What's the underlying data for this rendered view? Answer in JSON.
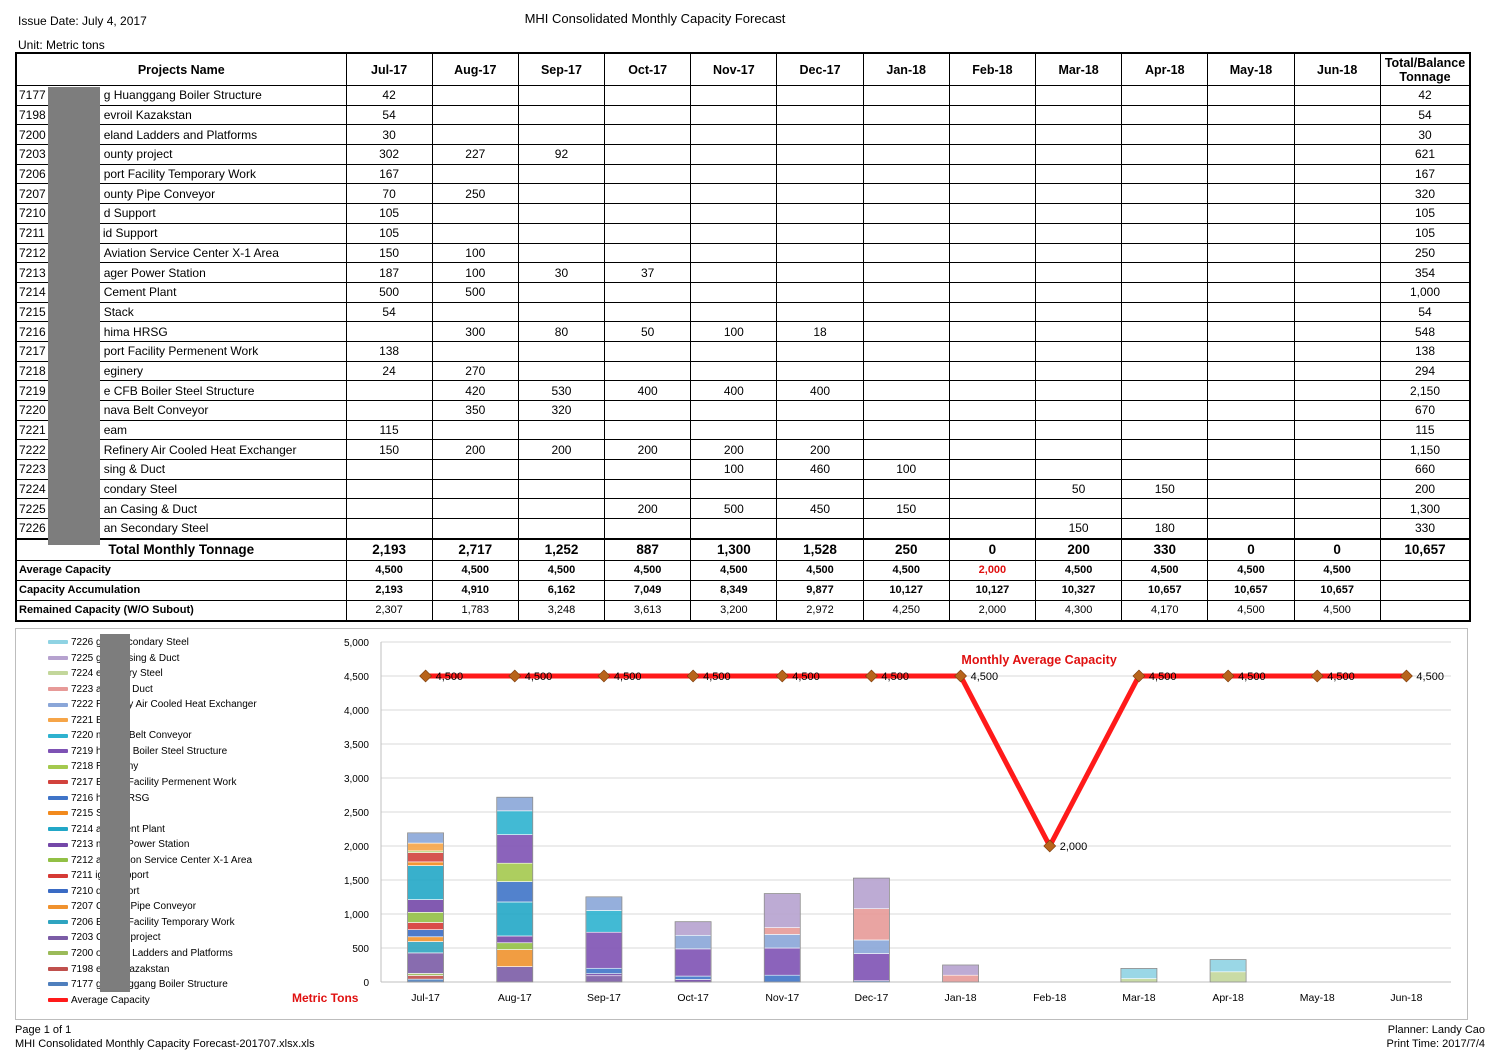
{
  "header": {
    "issue_date": "Issue Date: July 4, 2017",
    "title": "MHI Consolidated Monthly Capacity Forecast",
    "unit": "Unit: Metric tons"
  },
  "table": {
    "name_header": "Projects Name",
    "months": [
      "Jul-17",
      "Aug-17",
      "Sep-17",
      "Oct-17",
      "Nov-17",
      "Dec-17",
      "Jan-18",
      "Feb-18",
      "Mar-18",
      "Apr-18",
      "May-18",
      "Jun-18"
    ],
    "total_header": "Total/Balance Tonnage",
    "rows": [
      {
        "code": "7177",
        "name": "g Huanggang Boiler Structure",
        "values": [
          "42",
          "",
          "",
          "",
          "",
          "",
          "",
          "",
          "",
          "",
          "",
          ""
        ],
        "total": "42"
      },
      {
        "code": "7198",
        "name": "evroil Kazakstan",
        "values": [
          "54",
          "",
          "",
          "",
          "",
          "",
          "",
          "",
          "",
          "",
          "",
          ""
        ],
        "total": "54"
      },
      {
        "code": "7200",
        "name": "eland Ladders and Platforms",
        "values": [
          "30",
          "",
          "",
          "",
          "",
          "",
          "",
          "",
          "",
          "",
          "",
          ""
        ],
        "total": "30"
      },
      {
        "code": "7203",
        "name": "ounty project",
        "values": [
          "302",
          "227",
          "92",
          "",
          "",
          "",
          "",
          "",
          "",
          "",
          "",
          ""
        ],
        "total": "621"
      },
      {
        "code": "7206",
        "name": "port Facility Temporary Work",
        "values": [
          "167",
          "",
          "",
          "",
          "",
          "",
          "",
          "",
          "",
          "",
          "",
          ""
        ],
        "total": "167"
      },
      {
        "code": "7207",
        "name": "ounty Pipe Conveyor",
        "values": [
          "70",
          "250",
          "",
          "",
          "",
          "",
          "",
          "",
          "",
          "",
          "",
          ""
        ],
        "total": "320"
      },
      {
        "code": "7210",
        "name": "d Support",
        "values": [
          "105",
          "",
          "",
          "",
          "",
          "",
          "",
          "",
          "",
          "",
          "",
          ""
        ],
        "total": "105"
      },
      {
        "code": "7211",
        "name": "id Support",
        "values": [
          "105",
          "",
          "",
          "",
          "",
          "",
          "",
          "",
          "",
          "",
          "",
          ""
        ],
        "total": "105"
      },
      {
        "code": "7212",
        "name": "Aviation Service Center X-1 Area",
        "values": [
          "150",
          "100",
          "",
          "",
          "",
          "",
          "",
          "",
          "",
          "",
          "",
          ""
        ],
        "total": "250"
      },
      {
        "code": "7213",
        "name": "ager Power Station",
        "values": [
          "187",
          "100",
          "30",
          "37",
          "",
          "",
          "",
          "",
          "",
          "",
          "",
          ""
        ],
        "total": "354"
      },
      {
        "code": "7214",
        "name": "Cement Plant",
        "values": [
          "500",
          "500",
          "",
          "",
          "",
          "",
          "",
          "",
          "",
          "",
          "",
          ""
        ],
        "total": "1,000"
      },
      {
        "code": "7215",
        "name": "Stack",
        "values": [
          "54",
          "",
          "",
          "",
          "",
          "",
          "",
          "",
          "",
          "",
          "",
          ""
        ],
        "total": "54"
      },
      {
        "code": "7216",
        "name": "hima HRSG",
        "values": [
          "",
          "300",
          "80",
          "50",
          "100",
          "18",
          "",
          "",
          "",
          "",
          "",
          ""
        ],
        "total": "548"
      },
      {
        "code": "7217",
        "name": "port Facility Permenent Work",
        "values": [
          "138",
          "",
          "",
          "",
          "",
          "",
          "",
          "",
          "",
          "",
          "",
          ""
        ],
        "total": "138"
      },
      {
        "code": "7218",
        "name": "eginery",
        "values": [
          "24",
          "270",
          "",
          "",
          "",
          "",
          "",
          "",
          "",
          "",
          "",
          ""
        ],
        "total": "294"
      },
      {
        "code": "7219",
        "name": "e CFB Boiler Steel Structure",
        "values": [
          "",
          "420",
          "530",
          "400",
          "400",
          "400",
          "",
          "",
          "",
          "",
          "",
          ""
        ],
        "total": "2,150"
      },
      {
        "code": "7220",
        "name": "nava Belt Conveyor",
        "values": [
          "",
          "350",
          "320",
          "",
          "",
          "",
          "",
          "",
          "",
          "",
          "",
          ""
        ],
        "total": "670"
      },
      {
        "code": "7221",
        "name": "eam",
        "values": [
          "115",
          "",
          "",
          "",
          "",
          "",
          "",
          "",
          "",
          "",
          "",
          ""
        ],
        "total": "115"
      },
      {
        "code": "7222",
        "name": "Refinery Air Cooled Heat Exchanger",
        "values": [
          "150",
          "200",
          "200",
          "200",
          "200",
          "200",
          "",
          "",
          "",
          "",
          "",
          ""
        ],
        "total": "1,150"
      },
      {
        "code": "7223",
        "name": "sing & Duct",
        "values": [
          "",
          "",
          "",
          "",
          "100",
          "460",
          "100",
          "",
          "",
          "",
          "",
          ""
        ],
        "total": "660"
      },
      {
        "code": "7224",
        "name": "condary Steel",
        "values": [
          "",
          "",
          "",
          "",
          "",
          "",
          "",
          "",
          "50",
          "150",
          "",
          ""
        ],
        "total": "200"
      },
      {
        "code": "7225",
        "name": "an Casing & Duct",
        "values": [
          "",
          "",
          "",
          "200",
          "500",
          "450",
          "150",
          "",
          "",
          "",
          "",
          ""
        ],
        "total": "1,300"
      },
      {
        "code": "7226",
        "name": "an Secondary Steel",
        "values": [
          "",
          "",
          "",
          "",
          "",
          "",
          "",
          "",
          "150",
          "180",
          "",
          ""
        ],
        "total": "330"
      }
    ],
    "total_row": {
      "label": "Total Monthly Tonnage",
      "values": [
        "2,193",
        "2,717",
        "1,252",
        "887",
        "1,300",
        "1,528",
        "250",
        "0",
        "200",
        "330",
        "0",
        "0"
      ],
      "total": "10,657"
    },
    "average_row": {
      "label": "Average Capacity",
      "values": [
        "4,500",
        "4,500",
        "4,500",
        "4,500",
        "4,500",
        "4,500",
        "4,500",
        "2,000",
        "4,500",
        "4,500",
        "4,500",
        "4,500"
      ]
    },
    "accum_row": {
      "label": "Capacity Accumulation",
      "values": [
        "2,193",
        "4,910",
        "6,162",
        "7,049",
        "8,349",
        "9,877",
        "10,127",
        "10,127",
        "10,327",
        "10,657",
        "10,657",
        "10,657"
      ]
    },
    "remain_row": {
      "label": "Remained Capacity (W/O Subout)",
      "values": [
        "2,307",
        "1,783",
        "3,248",
        "3,613",
        "3,200",
        "2,972",
        "4,250",
        "2,000",
        "4,300",
        "4,170",
        "4,500",
        "4,500"
      ]
    },
    "highlight_color": "#e01010"
  },
  "chart_data": {
    "type": "bar",
    "stacked": true,
    "categories": [
      "Jul-17",
      "Aug-17",
      "Sep-17",
      "Oct-17",
      "Nov-17",
      "Dec-17",
      "Jan-18",
      "Feb-18",
      "Mar-18",
      "Apr-18",
      "May-18",
      "Jun-18"
    ],
    "ylim": [
      0,
      5000
    ],
    "yticks": [
      "0",
      "500",
      "1,000",
      "1,500",
      "2,000",
      "2,500",
      "3,000",
      "3,500",
      "4,000",
      "4,500",
      "5,000"
    ],
    "ytick_values": [
      0,
      500,
      1000,
      1500,
      2000,
      2500,
      3000,
      3500,
      4000,
      4500,
      5000
    ],
    "xlabel": "Metric Tons",
    "grid": true,
    "series": [
      {
        "name": "7177 g Huanggang Boiler Structure",
        "color": "#4f7fbd",
        "values": [
          42,
          0,
          0,
          0,
          0,
          0,
          0,
          0,
          0,
          0,
          0,
          0
        ]
      },
      {
        "name": "7198 evroil Kazakstan",
        "color": "#c0504d",
        "values": [
          54,
          0,
          0,
          0,
          0,
          0,
          0,
          0,
          0,
          0,
          0,
          0
        ]
      },
      {
        "name": "7200 oreland Ladders and Platforms",
        "color": "#9bbb59",
        "values": [
          30,
          0,
          0,
          0,
          0,
          0,
          0,
          0,
          0,
          0,
          0,
          0
        ]
      },
      {
        "name": "7203 County project",
        "color": "#7b5ca6",
        "values": [
          302,
          227,
          92,
          0,
          0,
          0,
          0,
          0,
          0,
          0,
          0,
          0
        ]
      },
      {
        "name": "7206 Export Facility Temporary Work",
        "color": "#2fa4c0",
        "values": [
          167,
          0,
          0,
          0,
          0,
          0,
          0,
          0,
          0,
          0,
          0,
          0
        ]
      },
      {
        "name": "7207 County Pipe Conveyor",
        "color": "#f0922e",
        "values": [
          70,
          250,
          0,
          0,
          0,
          0,
          0,
          0,
          0,
          0,
          0,
          0
        ]
      },
      {
        "name": "7210 d Support",
        "color": "#3a6bc4",
        "values": [
          105,
          0,
          0,
          0,
          0,
          0,
          0,
          0,
          0,
          0,
          0,
          0
        ]
      },
      {
        "name": "7211 igid Support",
        "color": "#d63a35",
        "values": [
          105,
          0,
          0,
          0,
          0,
          0,
          0,
          0,
          0,
          0,
          0,
          0
        ]
      },
      {
        "name": "7212 ai Aviation Service Center X-1 Area",
        "color": "#92c045",
        "values": [
          150,
          100,
          0,
          0,
          0,
          0,
          0,
          0,
          0,
          0,
          0,
          0
        ]
      },
      {
        "name": "7213 mager Power Station",
        "color": "#7448a8",
        "values": [
          187,
          100,
          30,
          37,
          0,
          0,
          0,
          0,
          0,
          0,
          0,
          0
        ]
      },
      {
        "name": "7214 a Cement Plant",
        "color": "#22a7c7",
        "values": [
          500,
          500,
          0,
          0,
          0,
          0,
          0,
          0,
          0,
          0,
          0,
          0
        ]
      },
      {
        "name": "7215 Stack",
        "color": "#f28a1e",
        "values": [
          54,
          0,
          0,
          0,
          0,
          0,
          0,
          0,
          0,
          0,
          0,
          0
        ]
      },
      {
        "name": "7216 hima HRSG",
        "color": "#3f74c8",
        "values": [
          0,
          300,
          80,
          50,
          100,
          18,
          0,
          0,
          0,
          0,
          0,
          0
        ]
      },
      {
        "name": "7217 Export Facility Permenent Work",
        "color": "#d2423d",
        "values": [
          138,
          0,
          0,
          0,
          0,
          0,
          0,
          0,
          0,
          0,
          0,
          0
        ]
      },
      {
        "name": "7218 Regineny",
        "color": "#a4c94e",
        "values": [
          24,
          270,
          0,
          0,
          0,
          0,
          0,
          0,
          0,
          0,
          0,
          0
        ]
      },
      {
        "name": "7219 he CFB Boiler Steel Structure",
        "color": "#7e52b4",
        "values": [
          0,
          420,
          530,
          400,
          400,
          400,
          0,
          0,
          0,
          0,
          0,
          0
        ]
      },
      {
        "name": "7220 mnava Belt Conveyor",
        "color": "#2eb2cf",
        "values": [
          0,
          350,
          320,
          0,
          0,
          0,
          0,
          0,
          0,
          0,
          0,
          0
        ]
      },
      {
        "name": "7221 Beam",
        "color": "#f6a548",
        "values": [
          115,
          0,
          0,
          0,
          0,
          0,
          0,
          0,
          0,
          0,
          0,
          0
        ]
      },
      {
        "name": "7222 Refinery Air Cooled Heat Exchanger",
        "color": "#8aa6d8",
        "values": [
          150,
          200,
          200,
          200,
          200,
          200,
          0,
          0,
          0,
          0,
          0,
          0
        ]
      },
      {
        "name": "7223 asing & Duct",
        "color": "#e79a98",
        "values": [
          0,
          0,
          0,
          0,
          100,
          460,
          100,
          0,
          0,
          0,
          0,
          0
        ]
      },
      {
        "name": "7224 econdary Steel",
        "color": "#c3d79b",
        "values": [
          0,
          0,
          0,
          0,
          0,
          0,
          0,
          0,
          50,
          150,
          0,
          0
        ]
      },
      {
        "name": "7225 gan Casing & Duct",
        "color": "#b6a2cf",
        "values": [
          0,
          0,
          0,
          200,
          500,
          450,
          150,
          0,
          0,
          0,
          0,
          0
        ]
      },
      {
        "name": "7226 gan Secondary Steel",
        "color": "#8fd3e3",
        "values": [
          0,
          0,
          0,
          0,
          0,
          0,
          0,
          0,
          150,
          180,
          0,
          0
        ]
      }
    ],
    "line": {
      "name": "Average Capacity",
      "annotation": "Monthly Average Capacity",
      "color": "#ff1a1a",
      "marker_color": "#b8641b",
      "values": [
        4500,
        4500,
        4500,
        4500,
        4500,
        4500,
        4500,
        2000,
        4500,
        4500,
        4500,
        4500
      ],
      "labels": [
        "4,500",
        "4,500",
        "4,500",
        "4,500",
        "4,500",
        "4,500",
        "4,500",
        "2,000",
        "4,500",
        "4,500",
        "4,500",
        "4,500"
      ]
    }
  },
  "footer": {
    "page": "Page 1 of 1",
    "file": "MHI Consolidated Monthly Capacity Forecast-201707.xlsx.xls",
    "planner": "Planner: Landy Cao",
    "print_time": "Print Time: 2017/7/4"
  }
}
